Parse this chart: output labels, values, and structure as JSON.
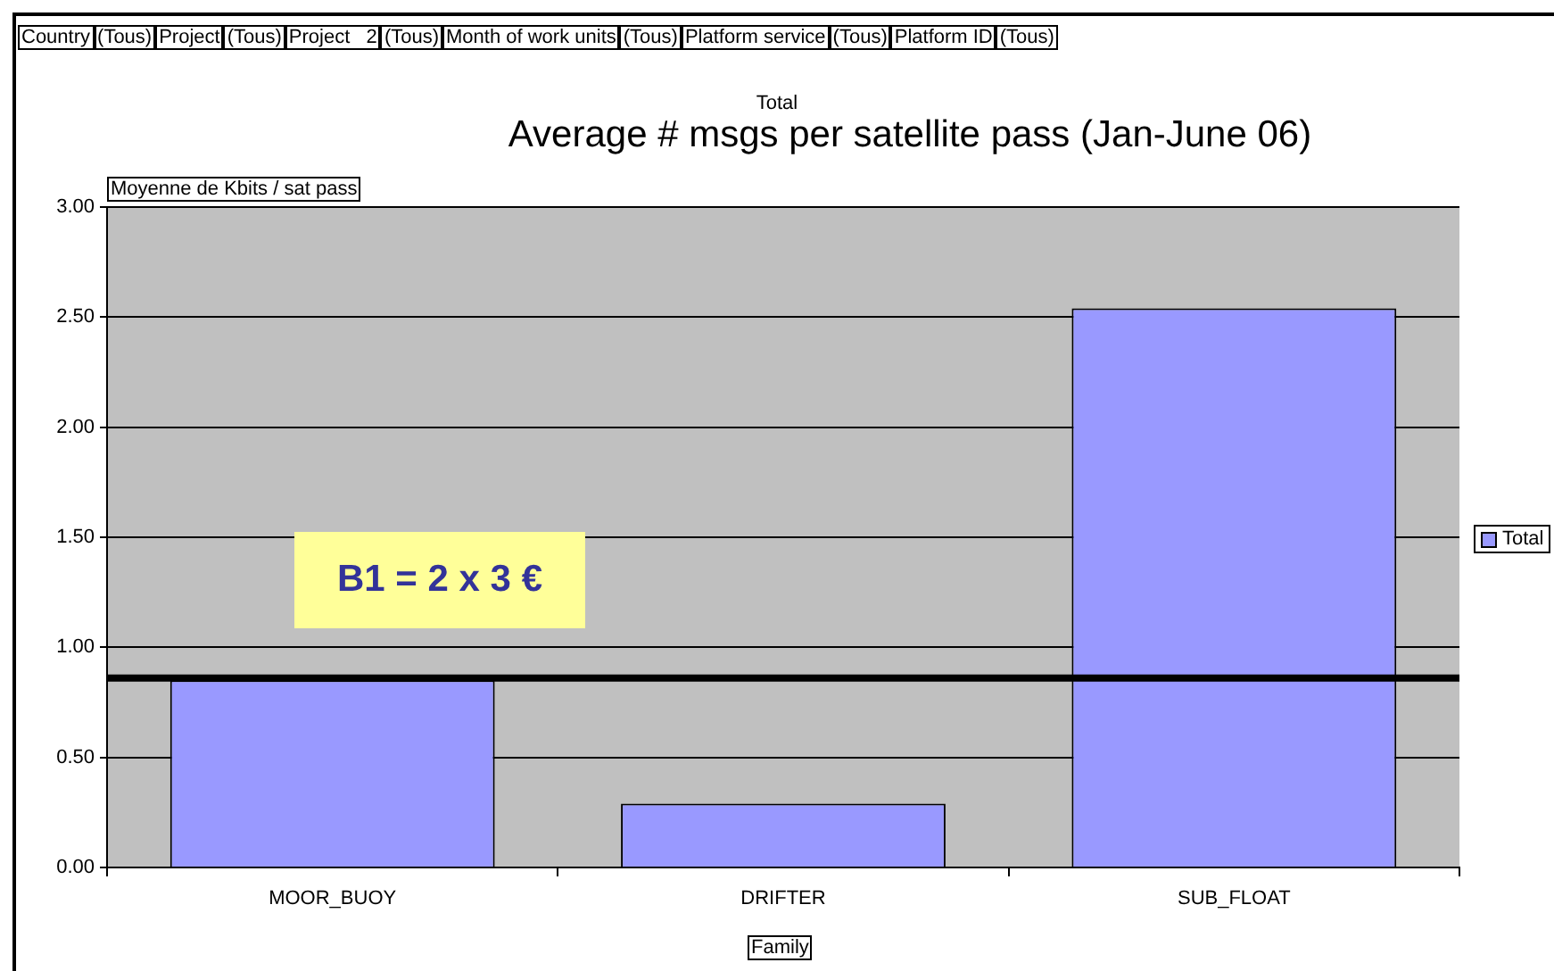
{
  "chart_data": {
    "type": "bar",
    "title": "Average # msgs per satellite pass (Jan-June 06)",
    "subtitle": "Total",
    "ylabel": "Moyenne de Kbits / sat pass",
    "xlabel": "Family",
    "categories": [
      "MOOR_BUOY",
      "DRIFTER",
      "SUB_FLOAT"
    ],
    "series": [
      {
        "name": "Total",
        "color": "#9999ff",
        "values": [
          0.85,
          0.29,
          2.54
        ]
      }
    ],
    "ylim": [
      0,
      3
    ],
    "yticks": [
      {
        "value": 0,
        "label": "0.00"
      },
      {
        "value": 0.5,
        "label": "0.50"
      },
      {
        "value": 1,
        "label": "1.00"
      },
      {
        "value": 1.5,
        "label": "1.50"
      },
      {
        "value": 2,
        "label": "2.00"
      },
      {
        "value": 2.5,
        "label": "2.50"
      },
      {
        "value": 3,
        "label": "3.00"
      }
    ],
    "grid": "y",
    "legend": "right",
    "ref_lines": [
      {
        "axis": "y",
        "value": 0.86,
        "color": "#000000"
      }
    ],
    "annotations": [
      "Country",
      "(Tous)",
      "Project",
      "(Tous)",
      "Project   2",
      "(Tous)",
      "Month of work units",
      "(Tous)",
      "Platform service",
      "(Tous)",
      "Platform ID",
      "(Tous)",
      "B1 = 2 x 3 €"
    ]
  }
}
